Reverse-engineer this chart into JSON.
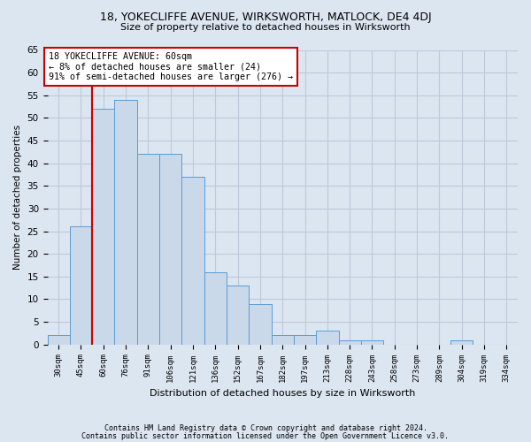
{
  "title1": "18, YOKECLIFFE AVENUE, WIRKSWORTH, MATLOCK, DE4 4DJ",
  "title2": "Size of property relative to detached houses in Wirksworth",
  "xlabel": "Distribution of detached houses by size in Wirksworth",
  "ylabel": "Number of detached properties",
  "categories": [
    "30sqm",
    "45sqm",
    "60sqm",
    "76sqm",
    "91sqm",
    "106sqm",
    "121sqm",
    "136sqm",
    "152sqm",
    "167sqm",
    "182sqm",
    "197sqm",
    "213sqm",
    "228sqm",
    "243sqm",
    "258sqm",
    "273sqm",
    "289sqm",
    "304sqm",
    "319sqm",
    "334sqm"
  ],
  "values": [
    2,
    26,
    52,
    54,
    42,
    42,
    37,
    16,
    13,
    9,
    2,
    2,
    3,
    1,
    1,
    0,
    0,
    0,
    1,
    0,
    0
  ],
  "bar_color": "#c9d9ea",
  "bar_edge_color": "#5b9bd5",
  "grid_color": "#bec8d8",
  "bg_color": "#dce6f1",
  "property_line_color": "#cc0000",
  "annotation_text": "18 YOKECLIFFE AVENUE: 60sqm\n← 8% of detached houses are smaller (24)\n91% of semi-detached houses are larger (276) →",
  "annotation_box_color": "#ffffff",
  "annotation_box_edge": "#cc0000",
  "footer1": "Contains HM Land Registry data © Crown copyright and database right 2024.",
  "footer2": "Contains public sector information licensed under the Open Government Licence v3.0.",
  "ylim": [
    0,
    65
  ],
  "yticks": [
    0,
    5,
    10,
    15,
    20,
    25,
    30,
    35,
    40,
    45,
    50,
    55,
    60,
    65
  ]
}
